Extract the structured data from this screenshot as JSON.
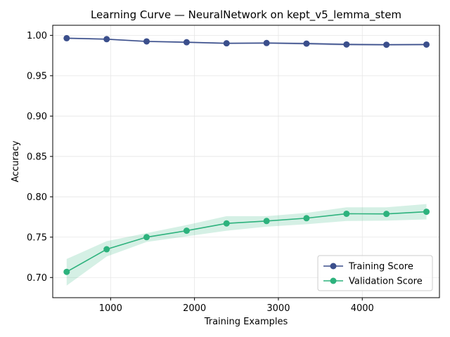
{
  "chart_data": {
    "type": "line",
    "title": "Learning Curve — NeuralNetwork on kept_v5_lemma_stem",
    "xlabel": "Training Examples",
    "ylabel": "Accuracy",
    "xlim": [
      310,
      4920
    ],
    "ylim": [
      0.675,
      1.0125
    ],
    "xticks": [
      1000,
      2000,
      3000,
      4000
    ],
    "yticks": [
      0.7,
      0.75,
      0.8,
      0.85,
      0.9,
      0.95,
      1.0
    ],
    "grid": true,
    "legend_position": "lower-right",
    "x": [
      476,
      953,
      1429,
      1906,
      2382,
      2859,
      3335,
      3812,
      4288,
      4765
    ],
    "series": [
      {
        "name": "Training Score",
        "color": "#3b4f8c",
        "values": [
          0.9965,
          0.9953,
          0.9925,
          0.9915,
          0.9902,
          0.9905,
          0.9898,
          0.9887,
          0.9884,
          0.9886
        ],
        "band_lower": [
          0.9955,
          0.9945,
          0.9915,
          0.9905,
          0.9892,
          0.9895,
          0.9884,
          0.9872,
          0.9872,
          0.9874
        ],
        "band_upper": [
          0.9975,
          0.9961,
          0.9935,
          0.9925,
          0.9912,
          0.9915,
          0.9912,
          0.9902,
          0.9896,
          0.9898
        ]
      },
      {
        "name": "Validation Score",
        "color": "#2db27d",
        "values": [
          0.707,
          0.735,
          0.75,
          0.758,
          0.767,
          0.77,
          0.7735,
          0.779,
          0.7788,
          0.7815
        ],
        "band_lower": [
          0.69,
          0.726,
          0.744,
          0.751,
          0.758,
          0.763,
          0.766,
          0.77,
          0.7705,
          0.772
        ],
        "band_upper": [
          0.723,
          0.745,
          0.755,
          0.765,
          0.776,
          0.776,
          0.78,
          0.787,
          0.787,
          0.791
        ]
      }
    ]
  }
}
